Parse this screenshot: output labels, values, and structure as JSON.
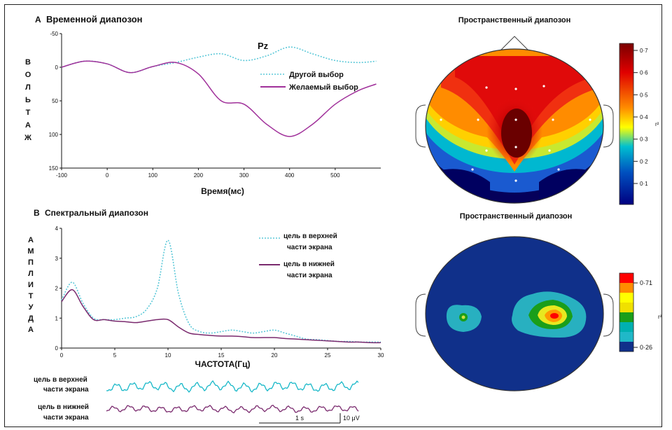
{
  "panel_a": {
    "letter": "A",
    "title": "Временной диапозон",
    "channel": "Pz",
    "ylabel_letters": [
      "В",
      "О",
      "Л",
      "Ь",
      "Т",
      "А",
      "Ж"
    ],
    "xlabel": "Время(мс)"
  },
  "panel_b": {
    "letter": "B",
    "title": "Спектральный диапозон",
    "ylabel_letters": [
      "А",
      "М",
      "П",
      "Л",
      "И",
      "Т",
      "У",
      "Д",
      "А"
    ],
    "xlabel": "ЧАСТОТА(Гц)"
  },
  "topo_top": {
    "title": "Пространственный диапозон",
    "colorbar_ticks": [
      "0·7",
      "0·6",
      "0·5",
      "0·4",
      "0·3",
      "0·2",
      "0·1"
    ],
    "colorbar_label": "r²",
    "colors": [
      "#7a0000",
      "#e00000",
      "#ff8c00",
      "#ffff00",
      "#00c0d0",
      "#0050c0",
      "#000080"
    ]
  },
  "topo_bottom": {
    "title": "Пространственный диапозон",
    "colorbar_ticks": [
      "0·71",
      "0·26"
    ],
    "colorbar_label": "r²",
    "colors": [
      "#ff0000",
      "#ff8c00",
      "#ffff00",
      "#1a9e1a",
      "#00b0b0",
      "#10308a"
    ]
  },
  "raw": {
    "label_top_1": "цель в верхней",
    "label_top_2": "части экрана",
    "label_bottom_1": "цель в нижней",
    "label_bottom_2": "части экрана",
    "time_scale": "1 s",
    "amp_scale": "10 μV"
  },
  "chart_data": [
    {
      "type": "line",
      "title": "Временной диапозон",
      "xlabel": "Время(мс)",
      "ylabel": "ВОЛЬТАЖ",
      "xlim": [
        -100,
        600
      ],
      "ylim": [
        150,
        -50
      ],
      "x_ticks": [
        -100,
        0,
        100,
        200,
        300,
        400,
        500
      ],
      "y_ticks": [
        -50,
        0,
        50,
        100,
        150
      ],
      "legend_position": "center-right",
      "series": [
        {
          "name": "Другой выбор",
          "color": "#5bc8d8",
          "style": "dotted",
          "x": [
            -100,
            -50,
            0,
            50,
            100,
            150,
            200,
            250,
            300,
            350,
            400,
            450,
            500,
            550,
            590
          ],
          "y": [
            0,
            -9,
            -5,
            8,
            -1,
            -7,
            -15,
            -20,
            -10,
            -17,
            -30,
            -20,
            -10,
            -7,
            -9
          ]
        },
        {
          "name": "Желаемый выбор",
          "color": "#a0309a",
          "style": "solid",
          "x": [
            -100,
            -50,
            0,
            50,
            100,
            150,
            200,
            250,
            300,
            350,
            400,
            450,
            500,
            550,
            590
          ],
          "y": [
            0,
            -9,
            -5,
            8,
            -1,
            -7,
            10,
            50,
            55,
            85,
            103,
            85,
            55,
            35,
            25
          ]
        }
      ]
    },
    {
      "type": "line",
      "title": "Спектральный диапозон",
      "xlabel": "ЧАСТОТА(Гц)",
      "ylabel": "АМПЛИТУДА",
      "xlim": [
        0,
        30
      ],
      "ylim": [
        0,
        4
      ],
      "x_ticks": [
        0,
        5,
        10,
        15,
        20,
        25,
        30
      ],
      "y_ticks": [
        0,
        1,
        2,
        3,
        4
      ],
      "legend_position": "top-right",
      "series": [
        {
          "name": "цель в верхней части экрана",
          "color": "#5bc8d8",
          "style": "dotted",
          "x": [
            0,
            1,
            2,
            3,
            4,
            5,
            6,
            7,
            8,
            9,
            10,
            11,
            12,
            13,
            14,
            15,
            16,
            17,
            18,
            19,
            20,
            21,
            22,
            23,
            24,
            25,
            26,
            27,
            28,
            29,
            30
          ],
          "y": [
            1.6,
            2.2,
            1.5,
            1.0,
            0.95,
            0.95,
            1.0,
            1.05,
            1.3,
            2.0,
            3.6,
            1.8,
            0.8,
            0.55,
            0.5,
            0.55,
            0.6,
            0.55,
            0.5,
            0.55,
            0.6,
            0.5,
            0.4,
            0.3,
            0.28,
            0.25,
            0.22,
            0.22,
            0.2,
            0.2,
            0.2
          ]
        },
        {
          "name": "цель в нижней части экрана",
          "color": "#7a2a6e",
          "style": "solid",
          "x": [
            0,
            1,
            2,
            3,
            4,
            5,
            6,
            7,
            8,
            9,
            10,
            11,
            12,
            13,
            14,
            15,
            16,
            17,
            18,
            19,
            20,
            21,
            22,
            23,
            24,
            25,
            26,
            27,
            28,
            29,
            30
          ],
          "y": [
            1.55,
            1.95,
            1.4,
            0.95,
            0.95,
            0.9,
            0.88,
            0.85,
            0.9,
            0.95,
            0.95,
            0.7,
            0.5,
            0.45,
            0.42,
            0.4,
            0.4,
            0.38,
            0.35,
            0.35,
            0.35,
            0.32,
            0.3,
            0.28,
            0.26,
            0.24,
            0.22,
            0.2,
            0.2,
            0.18,
            0.18
          ]
        }
      ]
    }
  ]
}
